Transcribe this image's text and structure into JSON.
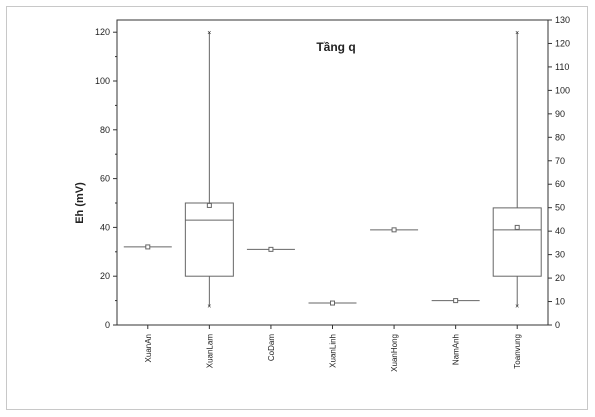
{
  "chart_data": {
    "type": "box",
    "title": "Tầng q",
    "xlabel": "",
    "ylabel": "Eh (mV)",
    "ylim": [
      0,
      125
    ],
    "yticks": [
      0,
      20,
      40,
      60,
      80,
      100,
      120
    ],
    "y2lim": [
      0,
      130
    ],
    "y2ticks": [
      0,
      10,
      20,
      30,
      40,
      50,
      60,
      70,
      80,
      90,
      100,
      110,
      120,
      130
    ],
    "grid": false,
    "legend": "none",
    "categories": [
      "XuanAn",
      "XuanLam",
      "CoDam",
      "XuanLinh",
      "XuanHong",
      "NamAnh",
      "Toanvung"
    ],
    "boxes": [
      {
        "category": "XuanAn",
        "min": 32,
        "q1": 32,
        "median": 32,
        "q3": 32,
        "max": 32,
        "mean": 32
      },
      {
        "category": "XuanLam",
        "min": 8,
        "q1": 20,
        "median": 43,
        "q3": 50,
        "max": 120,
        "mean": 49
      },
      {
        "category": "CoDam",
        "min": 31,
        "q1": 31,
        "median": 31,
        "q3": 31,
        "max": 31,
        "mean": 31
      },
      {
        "category": "XuanLinh",
        "min": 9,
        "q1": 9,
        "median": 9,
        "q3": 9,
        "max": 9,
        "mean": 9
      },
      {
        "category": "XuanHong",
        "min": 39,
        "q1": 39,
        "median": 39,
        "q3": 39,
        "max": 39,
        "mean": 39
      },
      {
        "category": "NamAnh",
        "min": 10,
        "q1": 10,
        "median": 10,
        "q3": 10,
        "max": 10,
        "mean": 10
      },
      {
        "category": "Toanvung",
        "min": 8,
        "q1": 20,
        "median": 39,
        "q3": 48,
        "max": 120,
        "mean": 40
      }
    ]
  },
  "colors": {
    "axis": "#333333",
    "box": "#666666",
    "frame": "#c8c8c8"
  }
}
